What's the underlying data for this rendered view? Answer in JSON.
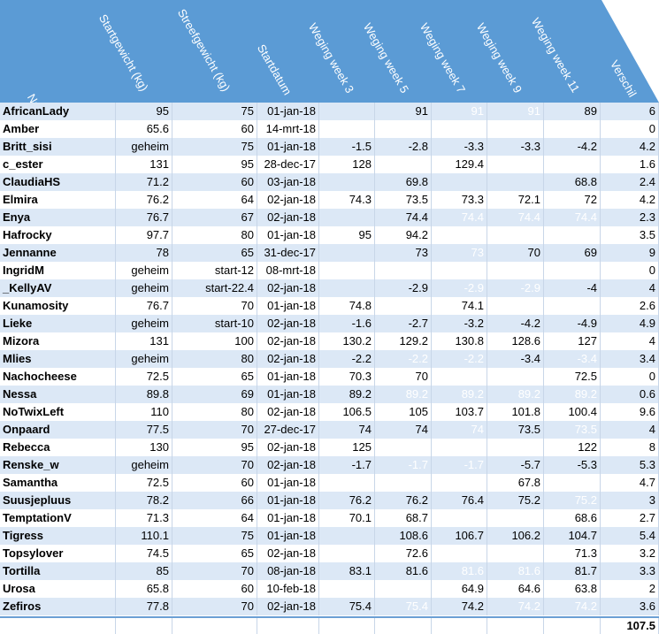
{
  "headers": [
    "Naam",
    "Startgewicht (kg)",
    "Streefgewicht (kg)",
    "Startdatum",
    "Weging week 3",
    "Weging week 5",
    "Weging week 7",
    "Weging week 9",
    "Weging week 11",
    "Verschil"
  ],
  "colors": {
    "header_bg": "#5b9bd5",
    "row_blue": "#dce8f6",
    "row_white": "#ffffff",
    "faded_text": "#ffffff"
  },
  "rows": [
    {
      "cells": [
        "AfricanLady",
        "95",
        "75",
        "01-jan-18",
        "",
        "91",
        "91",
        "91",
        "89",
        "6"
      ],
      "faded": [
        6,
        7
      ]
    },
    {
      "cells": [
        "Amber",
        "65.6",
        "60",
        "14-mrt-18",
        "",
        "",
        "",
        "",
        "",
        "0"
      ],
      "faded": []
    },
    {
      "cells": [
        "Britt_sisi",
        "geheim",
        "75",
        "01-jan-18",
        "-1.5",
        "-2.8",
        "-3.3",
        "-3.3",
        "-4.2",
        "4.2"
      ],
      "faded": []
    },
    {
      "cells": [
        "c_ester",
        "131",
        "95",
        "28-dec-17",
        "128",
        "",
        "129.4",
        "",
        "",
        "1.6"
      ],
      "faded": []
    },
    {
      "cells": [
        "ClaudiaHS",
        "71.2",
        "60",
        "03-jan-18",
        "",
        "69.8",
        "",
        "",
        "68.8",
        "2.4"
      ],
      "faded": []
    },
    {
      "cells": [
        "Elmira",
        "76.2",
        "64",
        "02-jan-18",
        "74.3",
        "73.5",
        "73.3",
        "72.1",
        "72",
        "4.2"
      ],
      "faded": []
    },
    {
      "cells": [
        "Enya",
        "76.7",
        "67",
        "02-jan-18",
        "",
        "74.4",
        "74.4",
        "74.4",
        "74.4",
        "2.3"
      ],
      "faded": [
        6,
        7,
        8
      ]
    },
    {
      "cells": [
        "Hafrocky",
        "97.7",
        "80",
        "01-jan-18",
        "95",
        "94.2",
        "",
        "",
        "",
        "3.5"
      ],
      "faded": []
    },
    {
      "cells": [
        "Jennanne",
        "78",
        "65",
        "31-dec-17",
        "",
        "73",
        "73",
        "70",
        "69",
        "9"
      ],
      "faded": [
        6
      ]
    },
    {
      "cells": [
        "IngridM",
        "geheim",
        "start-12",
        "08-mrt-18",
        "",
        "",
        "",
        "",
        "",
        "0"
      ],
      "faded": []
    },
    {
      "cells": [
        "_KellyAV",
        "geheim",
        "start-22.4",
        "02-jan-18",
        "",
        "-2.9",
        "-2.9",
        "-2.9",
        "-4",
        "4"
      ],
      "faded": [
        6,
        7
      ]
    },
    {
      "cells": [
        "Kunamosity",
        "76.7",
        "70",
        "01-jan-18",
        "74.8",
        "",
        "74.1",
        "",
        "",
        "2.6"
      ],
      "faded": []
    },
    {
      "cells": [
        "Lieke",
        "geheim",
        "start-10",
        "02-jan-18",
        "-1.6",
        "-2.7",
        "-3.2",
        "-4.2",
        "-4.9",
        "4.9"
      ],
      "faded": []
    },
    {
      "cells": [
        "Mizora",
        "131",
        "100",
        "02-jan-18",
        "130.2",
        "129.2",
        "130.8",
        "128.6",
        "127",
        "4"
      ],
      "faded": []
    },
    {
      "cells": [
        "Mlies",
        "geheim",
        "80",
        "02-jan-18",
        "-2.2",
        "-2.2",
        "-2.2",
        "-3.4",
        "-3.4",
        "3.4"
      ],
      "faded": [
        5,
        6,
        8
      ]
    },
    {
      "cells": [
        "Nachocheese",
        "72.5",
        "65",
        "01-jan-18",
        "70.3",
        "70",
        "",
        "",
        "72.5",
        "0"
      ],
      "faded": []
    },
    {
      "cells": [
        "Nessa",
        "89.8",
        "69",
        "01-jan-18",
        "89.2",
        "89.2",
        "89.2",
        "89.2",
        "89.2",
        "0.6"
      ],
      "faded": [
        5,
        6,
        7,
        8
      ]
    },
    {
      "cells": [
        "NoTwixLeft",
        "110",
        "80",
        "02-jan-18",
        "106.5",
        "105",
        "103.7",
        "101.8",
        "100.4",
        "9.6"
      ],
      "faded": []
    },
    {
      "cells": [
        "Onpaard",
        "77.5",
        "70",
        "27-dec-17",
        "74",
        "74",
        "74",
        "73.5",
        "73.5",
        "4"
      ],
      "faded": [
        6,
        8
      ]
    },
    {
      "cells": [
        "Rebecca",
        "130",
        "95",
        "02-jan-18",
        "125",
        "",
        "",
        "",
        "122",
        "8"
      ],
      "faded": []
    },
    {
      "cells": [
        "Renske_w",
        "geheim",
        "70",
        "02-jan-18",
        "-1.7",
        "-1.7",
        "-1.7",
        "-5.7",
        "-5.3",
        "5.3"
      ],
      "faded": [
        5,
        6
      ]
    },
    {
      "cells": [
        "Samantha",
        "72.5",
        "60",
        "01-jan-18",
        "",
        "",
        "",
        "67.8",
        "",
        "4.7"
      ],
      "faded": []
    },
    {
      "cells": [
        "Suusjepluus",
        "78.2",
        "66",
        "01-jan-18",
        "76.2",
        "76.2",
        "76.4",
        "75.2",
        "75.2",
        "3"
      ],
      "faded": [
        8
      ]
    },
    {
      "cells": [
        "TemptationV",
        "71.3",
        "64",
        "01-jan-18",
        "70.1",
        "68.7",
        "",
        "",
        "68.6",
        "2.7"
      ],
      "faded": []
    },
    {
      "cells": [
        "Tigress",
        "110.1",
        "75",
        "01-jan-18",
        "",
        "108.6",
        "106.7",
        "106.2",
        "104.7",
        "5.4"
      ],
      "faded": []
    },
    {
      "cells": [
        "Topsylover",
        "74.5",
        "65",
        "02-jan-18",
        "",
        "72.6",
        "",
        "",
        "71.3",
        "3.2"
      ],
      "faded": []
    },
    {
      "cells": [
        "Tortilla",
        "85",
        "70",
        "08-jan-18",
        "83.1",
        "81.6",
        "81.6",
        "81.6",
        "81.7",
        "3.3"
      ],
      "faded": [
        6,
        7
      ]
    },
    {
      "cells": [
        "Urosa",
        "65.8",
        "60",
        "10-feb-18",
        "",
        "",
        "64.9",
        "64.6",
        "63.8",
        "2"
      ],
      "faded": []
    },
    {
      "cells": [
        "Zefiros",
        "77.8",
        "70",
        "02-jan-18",
        "75.4",
        "75.4",
        "74.2",
        "74.2",
        "74.2",
        "3.6"
      ],
      "faded": [
        5,
        7,
        8
      ]
    }
  ],
  "total": "107.5"
}
